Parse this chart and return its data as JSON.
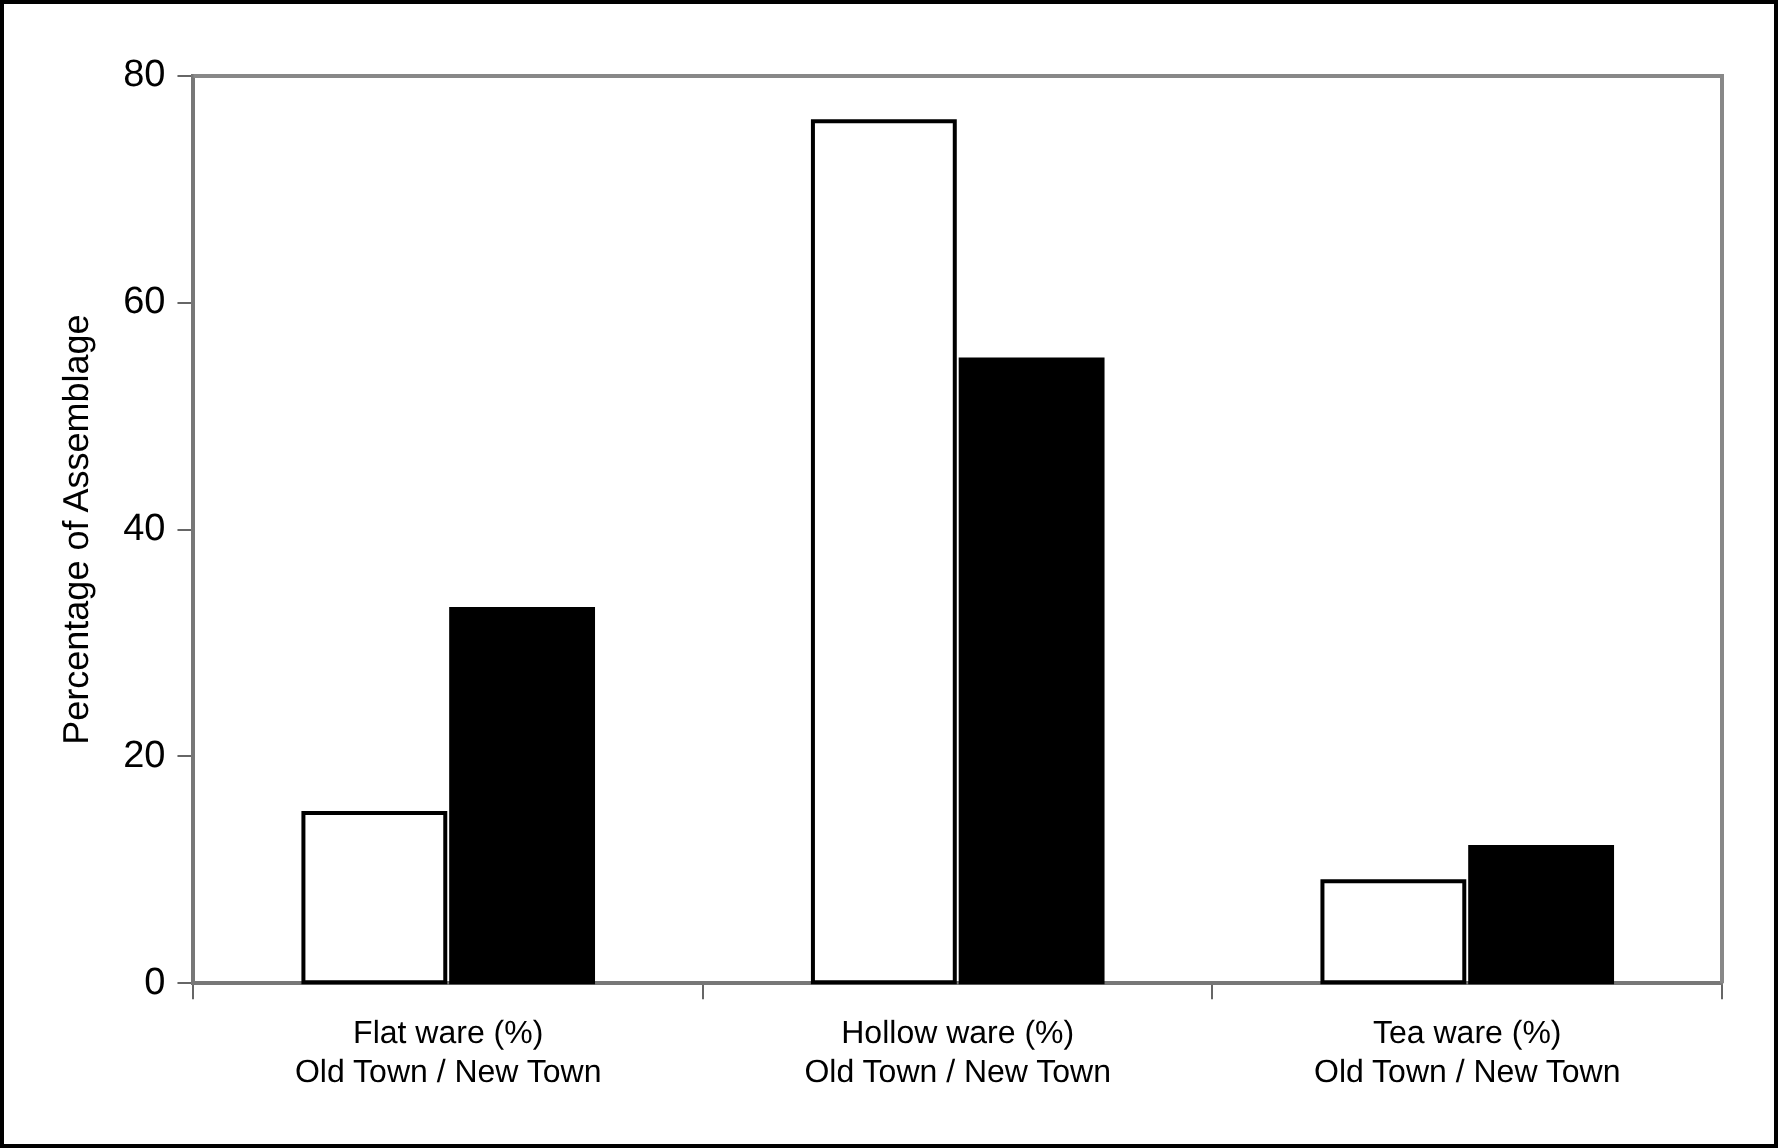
{
  "chart_data": {
    "type": "bar",
    "ylabel": "Percentage of Assemblage",
    "categories": [
      "Flat ware (%)\nOld Town / New Town",
      "Hollow ware (%)\nOld Town / New Town",
      "Tea ware (%)\nOld Town / New Town"
    ],
    "series": [
      {
        "color": "#ffffff",
        "values": [
          15,
          76,
          9
        ]
      },
      {
        "color": "#000000",
        "values": [
          33,
          55,
          12
        ]
      }
    ],
    "ylim": [
      0,
      80
    ],
    "yticks": [
      0,
      20,
      40,
      60,
      80
    ],
    "grid": false,
    "legend": false
  }
}
